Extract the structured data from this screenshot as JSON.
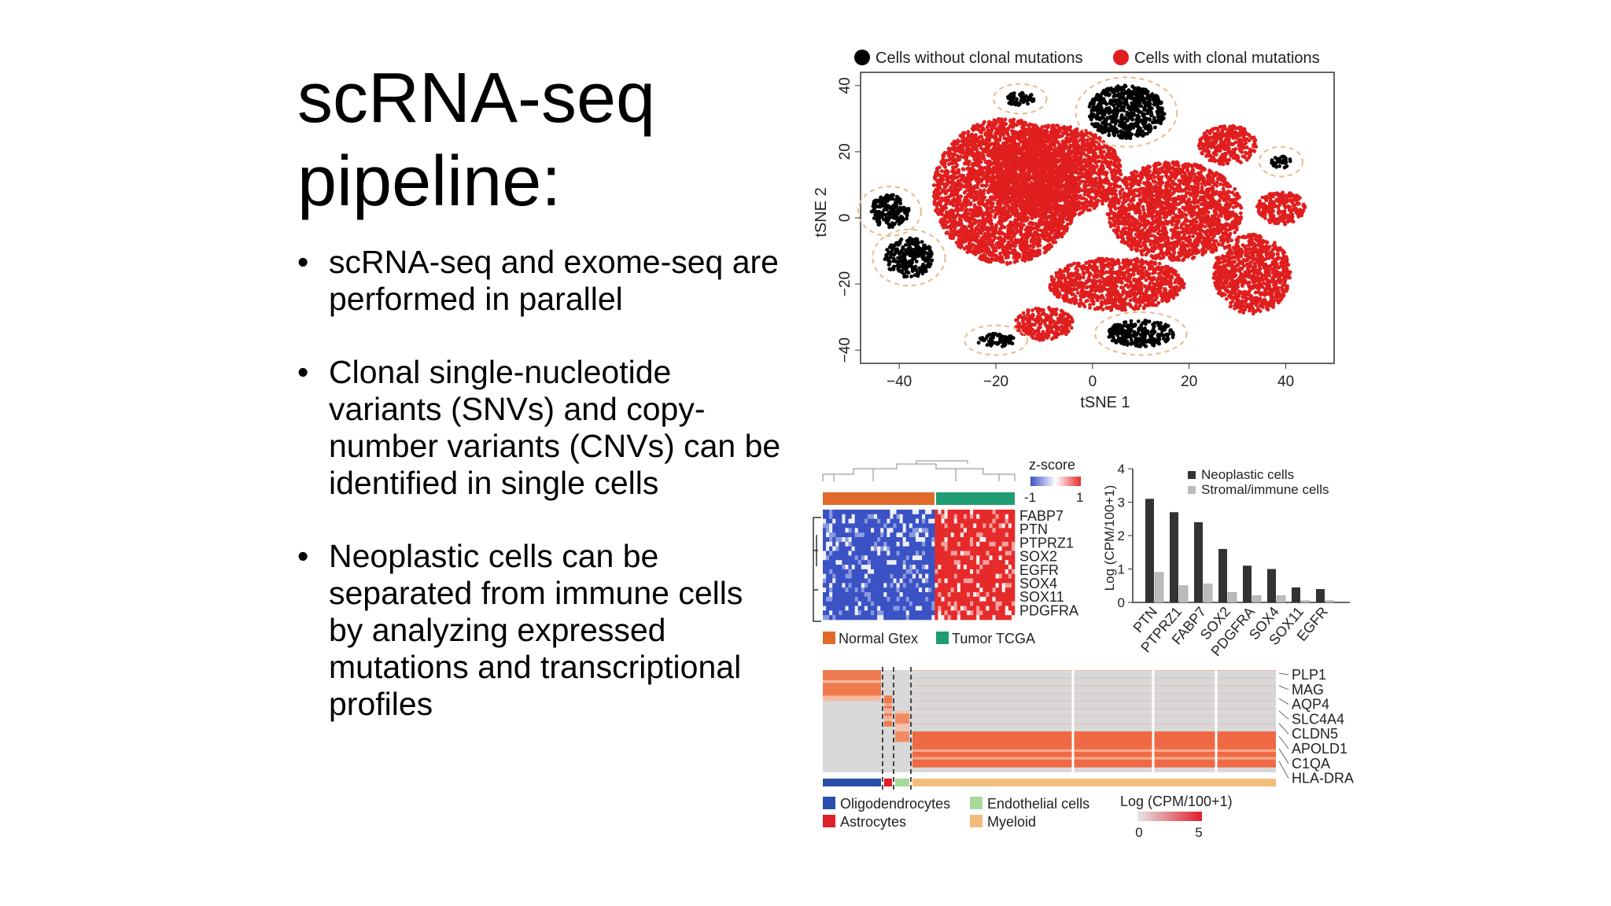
{
  "slide": {
    "title_line1": "scRNA-seq",
    "title_line2": "pipeline:",
    "bullets": [
      "scRNA-seq and exome-seq are performed in parallel",
      "Clonal single-nucleotide variants (SNVs) and copy-number variants (CNVs) can be identified in single cells",
      "Neoplastic cells can be separated from immune cells by analyzing expressed mutations and transcriptional profiles"
    ],
    "bullet_glyph": "•"
  },
  "chart_data": [
    {
      "type": "scatter",
      "xlabel": "tSNE 1",
      "ylabel": "tSNE 2",
      "xlim": [
        -48,
        50
      ],
      "ylim": [
        -44,
        44
      ],
      "xticks": [
        -40,
        -20,
        0,
        20,
        40
      ],
      "yticks": [
        40,
        20,
        0,
        -20,
        -40
      ],
      "legend_placement": "top",
      "series": [
        {
          "name": "Cells without clonal mutations",
          "color": "#000000",
          "clusters": [
            {
              "cx": 7,
              "cy": 32,
              "rx": 8,
              "ry": 8
            },
            {
              "cx": -42,
              "cy": 2,
              "rx": 4,
              "ry": 5
            },
            {
              "cx": -38,
              "cy": -12,
              "rx": 5,
              "ry": 6
            },
            {
              "cx": -15,
              "cy": 36,
              "rx": 3,
              "ry": 2
            },
            {
              "cx": -20,
              "cy": -37,
              "rx": 4,
              "ry": 2
            },
            {
              "cx": 10,
              "cy": -35,
              "rx": 7,
              "ry": 4
            },
            {
              "cx": 39,
              "cy": 17,
              "rx": 2,
              "ry": 2
            }
          ]
        },
        {
          "name": "Cells with clonal mutations",
          "color": "#e01e1e",
          "clusters": [
            {
              "cx": -18,
              "cy": 8,
              "rx": 15,
              "ry": 22
            },
            {
              "cx": -8,
              "cy": 14,
              "rx": 14,
              "ry": 14
            },
            {
              "cx": 17,
              "cy": 2,
              "rx": 14,
              "ry": 15
            },
            {
              "cx": 5,
              "cy": -20,
              "rx": 14,
              "ry": 8
            },
            {
              "cx": 33,
              "cy": -17,
              "rx": 8,
              "ry": 12
            },
            {
              "cx": 28,
              "cy": 22,
              "rx": 6,
              "ry": 6
            },
            {
              "cx": -10,
              "cy": -32,
              "rx": 6,
              "ry": 5
            },
            {
              "cx": 39,
              "cy": 3,
              "rx": 5,
              "ry": 5
            }
          ]
        }
      ],
      "annotations": "dashed circles around clusters"
    },
    {
      "type": "heatmap",
      "scale_label": "z-score",
      "scale_min": "-1",
      "scale_max": "1",
      "genes": [
        "FABP7",
        "PTN",
        "PTPRZ1",
        "SOX2",
        "EGFR",
        "SOX4",
        "SOX11",
        "PDGFRA"
      ],
      "groups": [
        {
          "name": "Normal Gtex",
          "color": "#e06a2a"
        },
        {
          "name": "Tumor TCGA",
          "color": "#1f9c72"
        }
      ]
    },
    {
      "type": "bar",
      "ylabel": "Log (CPM/100+1)",
      "ylim": [
        0,
        4
      ],
      "yticks": [
        0,
        1,
        2,
        3,
        4
      ],
      "categories": [
        "PTN",
        "PTPRZ1",
        "FABP7",
        "SOX2",
        "PDGFRA",
        "SOX4",
        "SOX11",
        "EGFR"
      ],
      "legend_placement": "top-right",
      "series": [
        {
          "name": "Neoplastic cells",
          "color": "#333333",
          "values": [
            3.1,
            2.7,
            2.4,
            1.6,
            1.1,
            1.0,
            0.45,
            0.4
          ]
        },
        {
          "name": "Stromal/immune cells",
          "color": "#bbbbbb",
          "values": [
            0.9,
            0.5,
            0.55,
            0.3,
            0.2,
            0.2,
            0.05,
            0.05
          ]
        }
      ]
    },
    {
      "type": "heatmap",
      "scale_label": "Log (CPM/100+1)",
      "scale_min": "0",
      "scale_max": "5",
      "genes": [
        "PLP1",
        "MAG",
        "AQP4",
        "SLC4A4",
        "CLDN5",
        "APOLD1",
        "C1QA",
        "HLA-DRA"
      ],
      "groups": [
        {
          "name": "Oligodendrocytes",
          "color": "#2a4fa8"
        },
        {
          "name": "Endothelial cells",
          "color": "#a6d99a"
        },
        {
          "name": "Astrocytes",
          "color": "#e01e2a"
        },
        {
          "name": "Myeloid",
          "color": "#f2bd7a"
        }
      ]
    }
  ]
}
